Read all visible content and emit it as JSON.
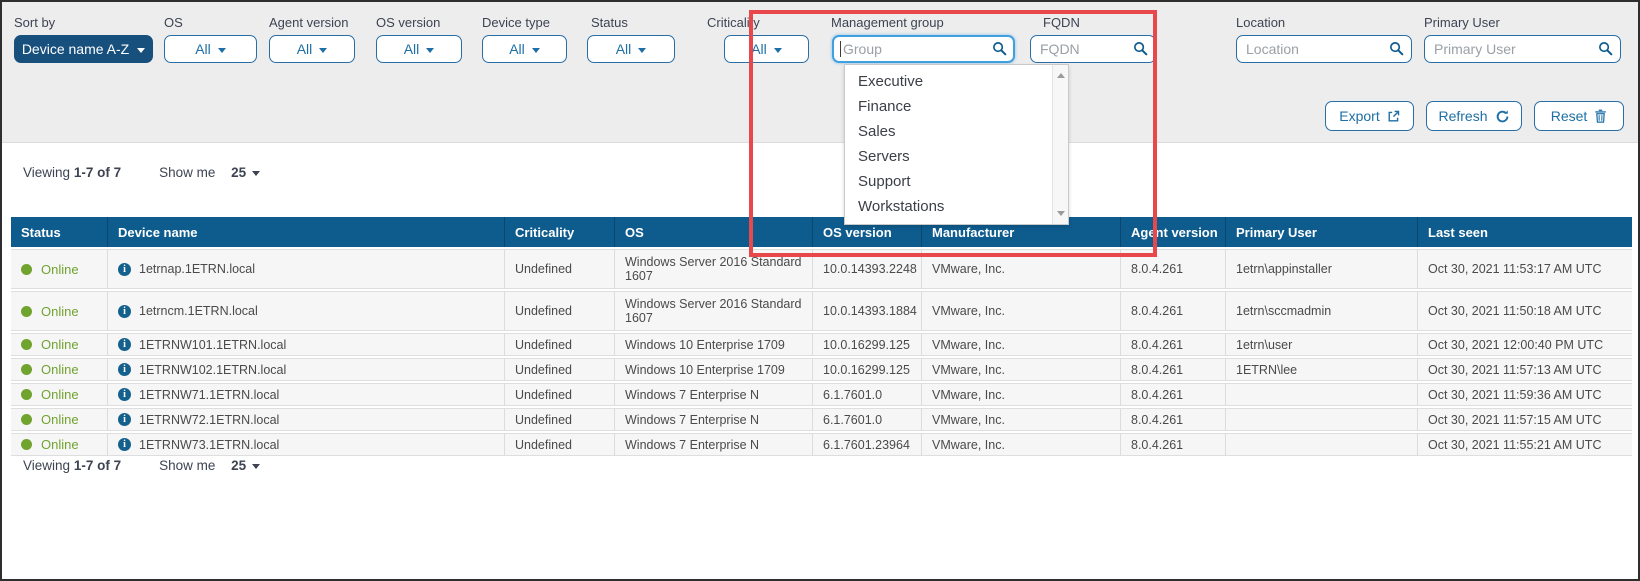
{
  "colors": {
    "header_blue": "#0e5c8e",
    "accent_blue": "#1d6fa5",
    "primary_button_blue": "#174f7d",
    "online_green": "#71a32f",
    "annotation_red": "#e8474c",
    "filter_bar_gray": "#ededee"
  },
  "filters": [
    {
      "id": "sort_by",
      "label": "Sort by",
      "type": "primary",
      "value": "Device name A-Z"
    },
    {
      "id": "os",
      "label": "OS",
      "type": "select",
      "value": "All"
    },
    {
      "id": "agent_version",
      "label": "Agent version",
      "type": "select",
      "value": "All"
    },
    {
      "id": "os_version",
      "label": "OS version",
      "type": "select",
      "value": "All"
    },
    {
      "id": "device_type",
      "label": "Device type",
      "type": "select",
      "value": "All"
    },
    {
      "id": "status",
      "label": "Status",
      "type": "select",
      "value": "All"
    },
    {
      "id": "criticality",
      "label": "Criticality",
      "type": "select",
      "value": "All"
    },
    {
      "id": "management_group",
      "label": "Management group",
      "type": "search",
      "value": "",
      "placeholder": "Group",
      "focused": true
    },
    {
      "id": "fqdn",
      "label": "FQDN",
      "type": "search",
      "value": "",
      "placeholder": "FQDN"
    },
    {
      "id": "location",
      "label": "Location",
      "type": "search",
      "value": "",
      "placeholder": "Location"
    },
    {
      "id": "primary_user",
      "label": "Primary User",
      "type": "search",
      "value": "",
      "placeholder": "Primary User"
    }
  ],
  "management_group_dropdown": {
    "items": [
      "Executive",
      "Finance",
      "Sales",
      "Servers",
      "Support",
      "Workstations"
    ]
  },
  "actions": {
    "export_label": "Export",
    "refresh_label": "Refresh",
    "reset_label": "Reset"
  },
  "pagination": {
    "viewing_prefix": "Viewing",
    "viewing_range": "1-7 of 7",
    "show_me_prefix": "Show me",
    "page_size": "25"
  },
  "table": {
    "columns": [
      {
        "key": "status",
        "label": "Status"
      },
      {
        "key": "device",
        "label": "Device name"
      },
      {
        "key": "criticality",
        "label": "Criticality"
      },
      {
        "key": "os",
        "label": "OS"
      },
      {
        "key": "os_version",
        "label": "OS version"
      },
      {
        "key": "manufacturer",
        "label": "Manufacturer"
      },
      {
        "key": "agent_version",
        "label": "Agent version"
      },
      {
        "key": "primary_user",
        "label": "Primary User"
      },
      {
        "key": "last_seen",
        "label": "Last seen"
      }
    ],
    "rows": [
      {
        "status": "Online",
        "device": "1etrnap.1ETRN.local",
        "criticality": "Undefined",
        "os": "Windows Server 2016 Standard 1607",
        "os_version": "10.0.14393.2248",
        "manufacturer": "VMware, Inc.",
        "agent_version": "8.0.4.261",
        "primary_user": "1etrn\\appinstaller",
        "last_seen": "Oct 30, 2021 11:53:17 AM UTC"
      },
      {
        "status": "Online",
        "device": "1etrncm.1ETRN.local",
        "criticality": "Undefined",
        "os": "Windows Server 2016 Standard 1607",
        "os_version": "10.0.14393.1884",
        "manufacturer": "VMware, Inc.",
        "agent_version": "8.0.4.261",
        "primary_user": "1etrn\\sccmadmin",
        "last_seen": "Oct 30, 2021 11:50:18 AM UTC"
      },
      {
        "status": "Online",
        "device": "1ETRNW101.1ETRN.local",
        "criticality": "Undefined",
        "os": "Windows 10 Enterprise 1709",
        "os_version": "10.0.16299.125",
        "manufacturer": "VMware, Inc.",
        "agent_version": "8.0.4.261",
        "primary_user": "1etrn\\user",
        "last_seen": "Oct 30, 2021 12:00:40 PM UTC"
      },
      {
        "status": "Online",
        "device": "1ETRNW102.1ETRN.local",
        "criticality": "Undefined",
        "os": "Windows 10 Enterprise 1709",
        "os_version": "10.0.16299.125",
        "manufacturer": "VMware, Inc.",
        "agent_version": "8.0.4.261",
        "primary_user": "1ETRN\\lee",
        "last_seen": "Oct 30, 2021 11:57:13 AM UTC"
      },
      {
        "status": "Online",
        "device": "1ETRNW71.1ETRN.local",
        "criticality": "Undefined",
        "os": "Windows 7 Enterprise N",
        "os_version": "6.1.7601.0",
        "manufacturer": "VMware, Inc.",
        "agent_version": "8.0.4.261",
        "primary_user": "",
        "last_seen": "Oct 30, 2021 11:59:36 AM UTC"
      },
      {
        "status": "Online",
        "device": "1ETRNW72.1ETRN.local",
        "criticality": "Undefined",
        "os": "Windows 7 Enterprise N",
        "os_version": "6.1.7601.0",
        "manufacturer": "VMware, Inc.",
        "agent_version": "8.0.4.261",
        "primary_user": "",
        "last_seen": "Oct 30, 2021 11:57:15 AM UTC"
      },
      {
        "status": "Online",
        "device": "1ETRNW73.1ETRN.local",
        "criticality": "Undefined",
        "os": "Windows 7 Enterprise N",
        "os_version": "6.1.7601.23964",
        "manufacturer": "VMware, Inc.",
        "agent_version": "8.0.4.261",
        "primary_user": "",
        "last_seen": "Oct 30, 2021 11:55:21 AM UTC"
      }
    ]
  }
}
